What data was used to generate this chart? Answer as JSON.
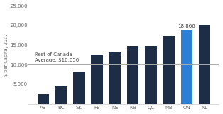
{
  "categories": [
    "AB",
    "BC",
    "SK",
    "PE",
    "NS",
    "NB",
    "QC",
    "MB",
    "ON",
    "NL"
  ],
  "values": [
    2500,
    4700,
    8200,
    12500,
    13200,
    14800,
    14700,
    17200,
    18866,
    20200
  ],
  "bar_colors": [
    "#1c2d45",
    "#1c2d45",
    "#1c2d45",
    "#1c2d45",
    "#1c2d45",
    "#1c2d45",
    "#1c2d45",
    "#1c2d45",
    "#2b7fd4",
    "#1c2d45"
  ],
  "avg_line": 10056,
  "avg_label": "Rest of Canada\nAverage: $10,056",
  "annotate_bar": "ON",
  "annotate_value": "18,866",
  "ylabel": "$ per Capita, 2017",
  "ylim": [
    0,
    25000
  ],
  "yticks": [
    0,
    5000,
    10000,
    15000,
    20000,
    25000
  ],
  "background_color": "#ffffff",
  "tick_fontsize": 5.0,
  "label_fontsize": 5.5,
  "bar_width": 0.65
}
